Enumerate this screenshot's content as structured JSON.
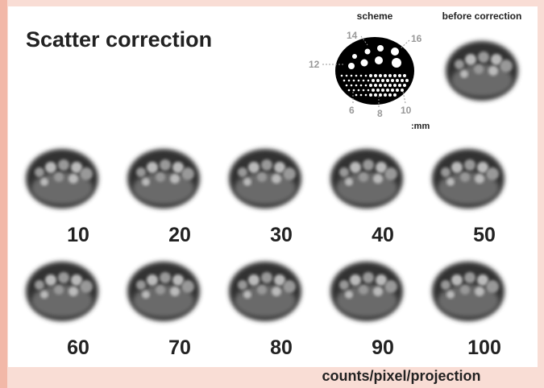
{
  "title": "Scatter correction",
  "scheme": {
    "label": "scheme",
    "sizes": [
      "14",
      "16",
      "12",
      "6",
      "8",
      "10"
    ],
    "unit": ":mm"
  },
  "before": {
    "label": "before correction"
  },
  "images": [
    {
      "label": "10"
    },
    {
      "label": "20"
    },
    {
      "label": "30"
    },
    {
      "label": "40"
    },
    {
      "label": "50"
    },
    {
      "label": "60"
    },
    {
      "label": "70"
    },
    {
      "label": "80"
    },
    {
      "label": "90"
    },
    {
      "label": "100"
    }
  ],
  "caption": "counts/pixel/projection"
}
